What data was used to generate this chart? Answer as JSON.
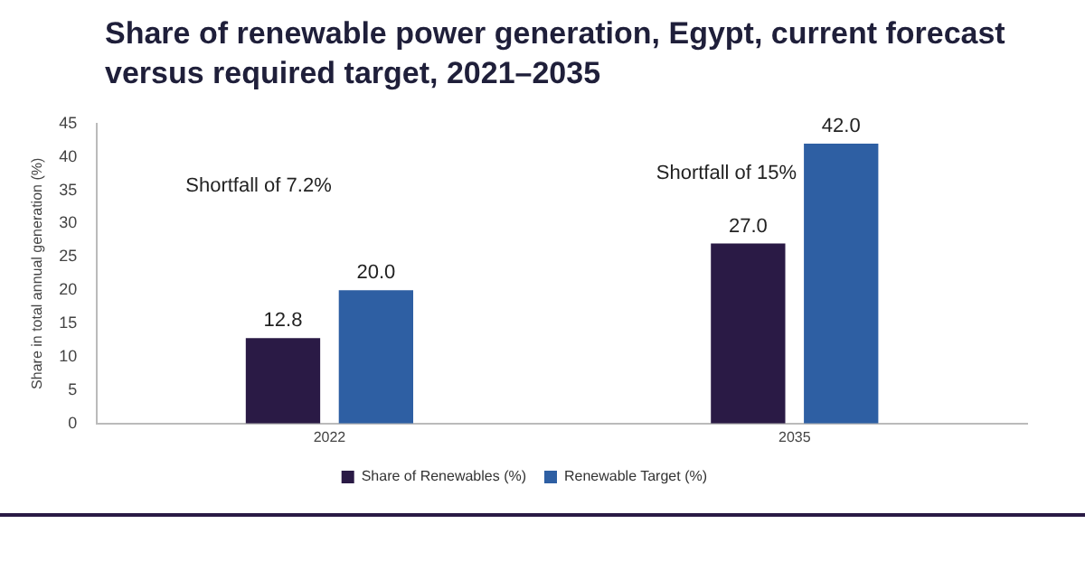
{
  "chart_data": {
    "type": "bar",
    "title": "Share of renewable power generation, Egypt, current forecast versus required target, 2021–2035",
    "ylabel": "Share in total annual generation (%)",
    "categories": [
      "2022",
      "2035"
    ],
    "series": [
      {
        "name": "Share of Renewables (%)",
        "color": "#2a1a45",
        "values": [
          12.8,
          27.0
        ],
        "value_labels": [
          "12.8",
          "27.0"
        ]
      },
      {
        "name": "Renewable Target (%)",
        "color": "#2e5fa3",
        "values": [
          20.0,
          42.0
        ],
        "value_labels": [
          "20.0",
          "42.0"
        ]
      }
    ],
    "ylim": [
      0,
      45
    ],
    "yticks": [
      0,
      5,
      10,
      15,
      20,
      25,
      30,
      35,
      40,
      45
    ],
    "grid": false,
    "legend": "bottom",
    "annotations": [
      "Shortfall of 7.2%",
      "Shortfall of 15%"
    ]
  }
}
